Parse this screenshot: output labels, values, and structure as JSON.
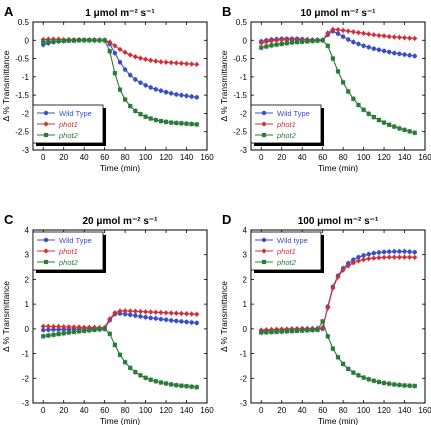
{
  "colors": {
    "wild_type": "#3b4fc4",
    "phot1": "#d0303a",
    "phot2": "#2b7a3c"
  },
  "chart_data": [
    {
      "panel": "A",
      "type": "line",
      "title": "1 μmol m⁻² s⁻¹",
      "xlabel": "Time (min)",
      "ylabel": "Δ % Transmittance",
      "xlim": [
        -10,
        160
      ],
      "ylim": [
        -3,
        0.5
      ],
      "xticks": [
        "0",
        "20",
        "40",
        "60",
        "80",
        "100",
        "120",
        "140",
        "160"
      ],
      "yticks": [
        "-3",
        "-2.5",
        "-2",
        "-1.5",
        "-1",
        "-0.5",
        "0",
        "0.5"
      ],
      "legend": "bottom-left",
      "x": [
        0,
        5,
        10,
        15,
        20,
        25,
        30,
        35,
        40,
        45,
        50,
        55,
        60,
        65,
        70,
        75,
        80,
        85,
        90,
        95,
        100,
        105,
        110,
        115,
        120,
        125,
        130,
        135,
        140,
        145,
        150
      ],
      "series": [
        {
          "name": "Wild Type",
          "marker": "circle",
          "values": [
            -0.12,
            -0.08,
            -0.05,
            -0.03,
            -0.01,
            0,
            0.01,
            0.01,
            0.01,
            0.01,
            0.01,
            0,
            0,
            -0.1,
            -0.35,
            -0.6,
            -0.8,
            -0.95,
            -1.07,
            -1.16,
            -1.23,
            -1.29,
            -1.34,
            -1.38,
            -1.42,
            -1.45,
            -1.48,
            -1.5,
            -1.52,
            -1.54,
            -1.56
          ]
        },
        {
          "name": "phot1",
          "marker": "diamond",
          "values": [
            0.02,
            0.03,
            0.03,
            0.03,
            0.02,
            0.02,
            0.01,
            0.01,
            0.01,
            0.01,
            0,
            0,
            0,
            -0.05,
            -0.15,
            -0.25,
            -0.33,
            -0.4,
            -0.45,
            -0.49,
            -0.52,
            -0.55,
            -0.57,
            -0.59,
            -0.6,
            -0.61,
            -0.62,
            -0.63,
            -0.64,
            -0.65,
            -0.66
          ]
        },
        {
          "name": "phot2",
          "marker": "square",
          "values": [
            -0.05,
            -0.04,
            -0.03,
            -0.02,
            -0.02,
            -0.01,
            -0.01,
            0,
            0,
            0,
            0,
            0,
            0,
            -0.3,
            -0.9,
            -1.35,
            -1.62,
            -1.8,
            -1.93,
            -2.02,
            -2.09,
            -2.14,
            -2.18,
            -2.21,
            -2.23,
            -2.25,
            -2.26,
            -2.27,
            -2.28,
            -2.29,
            -2.3
          ]
        }
      ]
    },
    {
      "panel": "B",
      "type": "line",
      "title": "10 μmol m⁻² s⁻¹",
      "xlabel": "Time (min)",
      "ylabel": "Δ % Transmittance",
      "xlim": [
        -10,
        160
      ],
      "ylim": [
        -3,
        0.5
      ],
      "xticks": [
        "0",
        "20",
        "40",
        "60",
        "80",
        "100",
        "120",
        "140",
        "160"
      ],
      "yticks": [
        "-3",
        "-2.5",
        "-2",
        "-1.5",
        "-1",
        "-0.5",
        "0",
        "0.5"
      ],
      "legend": "bottom-left",
      "x": [
        0,
        5,
        10,
        15,
        20,
        25,
        30,
        35,
        40,
        45,
        50,
        55,
        60,
        65,
        70,
        75,
        80,
        85,
        90,
        95,
        100,
        105,
        110,
        115,
        120,
        125,
        130,
        135,
        140,
        145,
        150
      ],
      "series": [
        {
          "name": "Wild Type",
          "marker": "circle",
          "values": [
            -0.03,
            0,
            0.02,
            0.03,
            0.04,
            0.04,
            0.04,
            0.04,
            0.03,
            0.02,
            0.01,
            0.01,
            0,
            0.15,
            0.25,
            0.18,
            0.1,
            0.02,
            -0.05,
            -0.1,
            -0.15,
            -0.19,
            -0.23,
            -0.26,
            -0.29,
            -0.32,
            -0.35,
            -0.37,
            -0.39,
            -0.41,
            -0.43
          ]
        },
        {
          "name": "phot1",
          "marker": "diamond",
          "values": [
            -0.07,
            -0.04,
            -0.02,
            0,
            0.01,
            0.01,
            0.01,
            0.01,
            0.01,
            0.01,
            0,
            0,
            0,
            0.2,
            0.3,
            0.29,
            0.27,
            0.25,
            0.23,
            0.21,
            0.19,
            0.17,
            0.15,
            0.13,
            0.12,
            0.1,
            0.09,
            0.08,
            0.07,
            0.06,
            0.05
          ]
        },
        {
          "name": "phot2",
          "marker": "square",
          "values": [
            -0.2,
            -0.17,
            -0.14,
            -0.12,
            -0.1,
            -0.08,
            -0.06,
            -0.05,
            -0.04,
            -0.03,
            -0.02,
            -0.01,
            0,
            -0.15,
            -0.5,
            -0.85,
            -1.15,
            -1.4,
            -1.6,
            -1.77,
            -1.9,
            -2.01,
            -2.1,
            -2.18,
            -2.25,
            -2.31,
            -2.36,
            -2.41,
            -2.45,
            -2.49,
            -2.53
          ]
        }
      ]
    },
    {
      "panel": "C",
      "type": "line",
      "title": "20 μmol m⁻² s⁻¹",
      "xlabel": "Time (min)",
      "ylabel": "Δ % Transmittance",
      "xlim": [
        -10,
        160
      ],
      "ylim": [
        -3,
        4
      ],
      "xticks": [
        "0",
        "20",
        "40",
        "60",
        "80",
        "100",
        "120",
        "140",
        "160"
      ],
      "yticks": [
        "-3",
        "-2",
        "-1",
        "0",
        "1",
        "2",
        "3",
        "4"
      ],
      "legend": "top-left",
      "x": [
        0,
        5,
        10,
        15,
        20,
        25,
        30,
        35,
        40,
        45,
        50,
        55,
        60,
        65,
        70,
        75,
        80,
        85,
        90,
        95,
        100,
        105,
        110,
        115,
        120,
        125,
        130,
        135,
        140,
        145,
        150
      ],
      "series": [
        {
          "name": "Wild Type",
          "marker": "circle",
          "values": [
            -0.05,
            -0.04,
            -0.03,
            -0.03,
            -0.02,
            -0.02,
            -0.01,
            -0.01,
            0,
            0,
            0,
            0,
            0,
            0.35,
            0.6,
            0.62,
            0.6,
            0.57,
            0.54,
            0.5,
            0.47,
            0.44,
            0.42,
            0.39,
            0.37,
            0.34,
            0.32,
            0.3,
            0.28,
            0.26,
            0.24
          ]
        },
        {
          "name": "phot1",
          "marker": "diamond",
          "values": [
            0.1,
            0.1,
            0.09,
            0.09,
            0.08,
            0.08,
            0.07,
            0.07,
            0.06,
            0.06,
            0.06,
            0.05,
            0.05,
            0.4,
            0.65,
            0.72,
            0.73,
            0.72,
            0.71,
            0.7,
            0.69,
            0.68,
            0.67,
            0.66,
            0.65,
            0.64,
            0.63,
            0.62,
            0.61,
            0.6,
            0.59
          ]
        },
        {
          "name": "phot2",
          "marker": "square",
          "values": [
            -0.3,
            -0.27,
            -0.24,
            -0.21,
            -0.18,
            -0.15,
            -0.12,
            -0.1,
            -0.08,
            -0.06,
            -0.04,
            -0.02,
            0,
            -0.2,
            -0.65,
            -1.05,
            -1.35,
            -1.58,
            -1.75,
            -1.88,
            -1.98,
            -2.06,
            -2.12,
            -2.17,
            -2.21,
            -2.25,
            -2.28,
            -2.3,
            -2.32,
            -2.34,
            -2.36
          ]
        }
      ]
    },
    {
      "panel": "D",
      "type": "line",
      "title": "100 μmol m⁻² s⁻¹",
      "xlabel": "Time (min)",
      "ylabel": "Δ % Transmittance",
      "xlim": [
        -10,
        160
      ],
      "ylim": [
        -3,
        4
      ],
      "xticks": [
        "0",
        "20",
        "40",
        "60",
        "80",
        "100",
        "120",
        "140",
        "160"
      ],
      "yticks": [
        "-3",
        "-2",
        "-1",
        "0",
        "1",
        "2",
        "3",
        "4"
      ],
      "legend": "top-left",
      "x": [
        0,
        5,
        10,
        15,
        20,
        25,
        30,
        35,
        40,
        45,
        50,
        55,
        60,
        65,
        70,
        75,
        80,
        85,
        90,
        95,
        100,
        105,
        110,
        115,
        120,
        125,
        130,
        135,
        140,
        145,
        150
      ],
      "series": [
        {
          "name": "Wild type",
          "marker": "circle",
          "values": [
            -0.1,
            -0.08,
            -0.06,
            -0.05,
            -0.04,
            -0.03,
            -0.02,
            -0.01,
            0,
            0,
            0,
            0,
            0,
            0.9,
            1.7,
            2.15,
            2.45,
            2.65,
            2.8,
            2.9,
            2.97,
            3.02,
            3.06,
            3.09,
            3.11,
            3.12,
            3.13,
            3.13,
            3.13,
            3.12,
            3.1
          ]
        },
        {
          "name": "phot1",
          "marker": "diamond",
          "values": [
            -0.05,
            -0.04,
            -0.03,
            -0.02,
            -0.01,
            -0.01,
            0,
            0,
            0.01,
            0.01,
            0.01,
            0.02,
            0.05,
            0.85,
            1.65,
            2.1,
            2.38,
            2.55,
            2.67,
            2.75,
            2.8,
            2.84,
            2.86,
            2.88,
            2.89,
            2.9,
            2.9,
            2.9,
            2.9,
            2.9,
            2.89
          ]
        },
        {
          "name": "phot2",
          "marker": "square",
          "values": [
            -0.15,
            -0.14,
            -0.13,
            -0.12,
            -0.11,
            -0.1,
            -0.09,
            -0.08,
            -0.07,
            -0.06,
            -0.05,
            -0.04,
            0.3,
            -0.3,
            -0.8,
            -1.15,
            -1.42,
            -1.62,
            -1.77,
            -1.88,
            -1.97,
            -2.04,
            -2.1,
            -2.15,
            -2.19,
            -2.22,
            -2.25,
            -2.27,
            -2.29,
            -2.3,
            -2.31
          ]
        }
      ]
    }
  ]
}
